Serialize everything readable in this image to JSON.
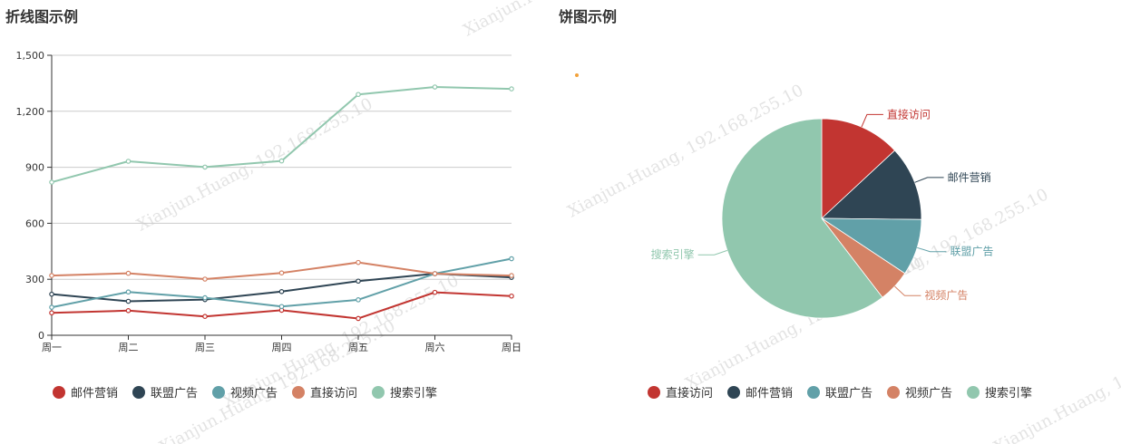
{
  "line_panel": {
    "title": "折线图示例"
  },
  "pie_panel": {
    "title": "饼图示例"
  },
  "watermark_text": "Xianjun.Huang, 192.168.255.10",
  "colors": {
    "red": "#c23531",
    "navy": "#2f4554",
    "teal": "#61a0a8",
    "orange": "#d48265",
    "mint": "#91c7ae",
    "grid": "#cccccc",
    "axis": "#333333",
    "dot": "#f2a23b"
  },
  "chart_data": [
    {
      "type": "line",
      "title": "折线图示例",
      "categories": [
        "周一",
        "周二",
        "周三",
        "周四",
        "周五",
        "周六",
        "周日"
      ],
      "ylim": [
        0,
        1500
      ],
      "yticks": [
        0,
        300,
        600,
        900,
        1200,
        1500
      ],
      "ytick_labels": [
        "0",
        "300",
        "600",
        "900",
        "1,200",
        "1,500"
      ],
      "grid": true,
      "legend_position": "bottom-left",
      "series": [
        {
          "name": "邮件营销",
          "color": "#c23531",
          "values": [
            120,
            132,
            101,
            134,
            90,
            230,
            210
          ]
        },
        {
          "name": "联盟广告",
          "color": "#2f4554",
          "values": [
            220,
            182,
            191,
            234,
            290,
            330,
            310
          ]
        },
        {
          "name": "视频广告",
          "color": "#61a0a8",
          "values": [
            150,
            232,
            201,
            154,
            190,
            330,
            410
          ]
        },
        {
          "name": "直接访问",
          "color": "#d48265",
          "values": [
            320,
            332,
            301,
            334,
            390,
            330,
            320
          ]
        },
        {
          "name": "搜索引擎",
          "color": "#91c7ae",
          "values": [
            820,
            932,
            901,
            934,
            1290,
            1330,
            1320
          ]
        }
      ]
    },
    {
      "type": "pie",
      "title": "饼图示例",
      "legend_position": "bottom-center",
      "slices": [
        {
          "name": "直接访问",
          "color": "#c23531",
          "value": 335
        },
        {
          "name": "邮件营销",
          "color": "#2f4554",
          "value": 310
        },
        {
          "name": "联盟广告",
          "color": "#61a0a8",
          "value": 234
        },
        {
          "name": "视频广告",
          "color": "#d48265",
          "value": 135
        },
        {
          "name": "搜索引擎",
          "color": "#91c7ae",
          "value": 1548
        }
      ]
    }
  ]
}
